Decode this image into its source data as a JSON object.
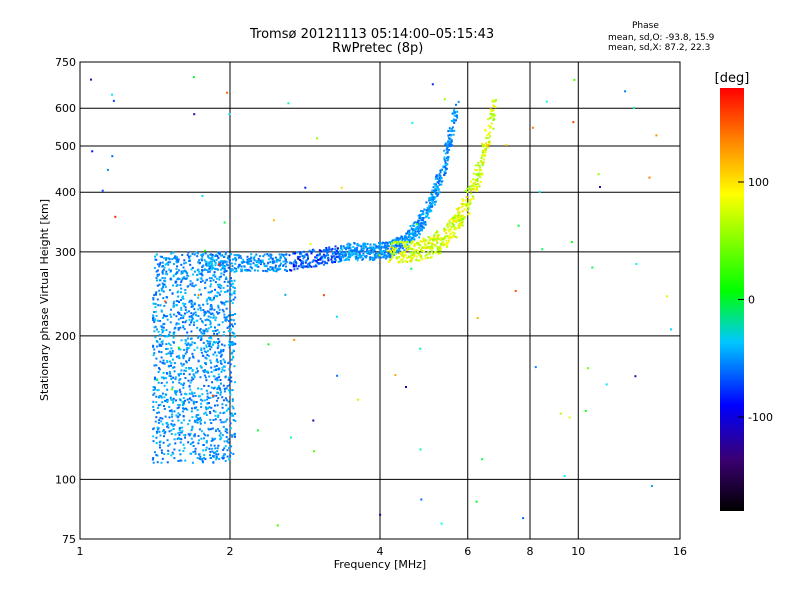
{
  "header": {
    "title": "Tromsø 20121113 05:14:00–05:15:43",
    "subtitle": "RwPretec (8p)",
    "phase_heading": "Phase",
    "phase_stats_o": "mean, sd,O: -93.8, 15.9",
    "phase_stats_x": "mean, sd,X:  87.2, 22.3"
  },
  "chart_data": {
    "type": "scatter",
    "xlabel": "Frequency [MHz]",
    "ylabel": "Stationary phase Virtual Height [km]",
    "xscale": "log",
    "yscale": "log",
    "xlim": [
      1,
      16
    ],
    "ylim": [
      75,
      750
    ],
    "xticks": [
      1,
      2,
      4,
      6,
      8,
      10,
      16
    ],
    "xtick_labels": [
      "1",
      "2",
      "4",
      "6",
      "8",
      "10",
      "16"
    ],
    "yticks": [
      75,
      100,
      200,
      300,
      400,
      500,
      600,
      750
    ],
    "ytick_labels": [
      "75",
      "100",
      "200",
      "300",
      "400",
      "500",
      "600",
      "750"
    ],
    "grid": true,
    "colorbar": {
      "label": "[deg]",
      "range": [
        -180,
        180
      ],
      "ticks": [
        100,
        0,
        -100
      ],
      "tick_labels": [
        "100",
        "0",
        "-100"
      ]
    },
    "series": [
      {
        "name": "O-mode",
        "phase_mean": -93.8,
        "phase_sd": 15.9,
        "regions": [
          {
            "desc": "lower echo cloud",
            "f": [
              1.4,
              2.05
            ],
            "h": [
              108,
              300
            ]
          },
          {
            "desc": "flat trace",
            "f": [
              1.75,
              3.6
            ],
            "h": [
              270,
              300
            ]
          },
          {
            "desc": "rising trace",
            "f": [
              3.6,
              5.7
            ],
            "h": [
              300,
              600
            ]
          }
        ]
      },
      {
        "name": "X-mode",
        "phase_mean": 87.2,
        "phase_sd": 22.3,
        "regions": [
          {
            "desc": "rising trace",
            "f": [
              4.2,
              6.8
            ],
            "h": [
              300,
              620
            ]
          }
        ]
      }
    ]
  }
}
